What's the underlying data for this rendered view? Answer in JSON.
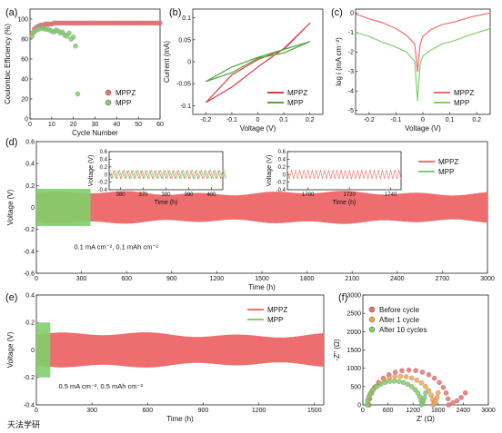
{
  "watermark": "天法学研",
  "colors": {
    "MPPZ": "#ee6d6f",
    "MPP": "#7fcf6a",
    "MPPZ_dark": "#d83b3f",
    "MPP_dark": "#4fa73c",
    "after1": "#f4a54a"
  },
  "chart_data": [
    {
      "id": "a",
      "label": "(a)",
      "type": "scatter",
      "xlabel": "Cycle Number",
      "ylabel": "Coulombic Efficiency (%)",
      "xlim": [
        0,
        60
      ],
      "ylim": [
        0,
        110
      ],
      "xticks": [
        0,
        10,
        20,
        30,
        40,
        50,
        60
      ],
      "yticks": [
        0,
        20,
        40,
        60,
        80,
        100
      ],
      "legend": "right",
      "series": [
        {
          "name": "MPPZ",
          "color": "MPPZ",
          "x": [
            1,
            2,
            3,
            4,
            5,
            6,
            7,
            8,
            9,
            10,
            11,
            12,
            13,
            14,
            15,
            16,
            17,
            18,
            19,
            20,
            21,
            22,
            23,
            24,
            25,
            26,
            27,
            28,
            29,
            30,
            31,
            32,
            33,
            34,
            35,
            36,
            37,
            38,
            39,
            40,
            41,
            42,
            43,
            44,
            45,
            46,
            47,
            48,
            49,
            50,
            51,
            52,
            53,
            54,
            55,
            56,
            57,
            58,
            59,
            60
          ],
          "y": [
            86,
            90,
            92,
            93,
            94,
            94,
            95,
            95,
            95,
            95,
            96,
            96,
            96,
            96,
            96,
            96,
            96,
            96,
            96,
            96,
            96,
            96,
            96,
            96,
            96,
            96,
            96,
            96,
            96,
            96,
            96,
            96,
            96,
            96,
            96,
            96,
            96,
            96,
            96,
            96,
            96,
            96,
            96,
            96,
            96,
            96,
            96,
            96,
            96,
            96,
            96,
            96,
            96,
            96,
            96,
            96,
            96,
            96,
            96,
            96
          ]
        },
        {
          "name": "MPP",
          "color": "MPP",
          "x": [
            1,
            2,
            3,
            4,
            5,
            6,
            7,
            8,
            9,
            10,
            11,
            12,
            13,
            14,
            15,
            16,
            17,
            18,
            19,
            20,
            21,
            22
          ],
          "y": [
            83,
            87,
            89,
            90,
            91,
            91,
            90,
            90,
            89,
            88,
            87,
            89,
            88,
            86,
            87,
            84,
            83,
            86,
            80,
            82,
            73,
            25
          ]
        }
      ]
    },
    {
      "id": "b",
      "label": "(b)",
      "type": "line",
      "xlabel": "Voltage (V)",
      "ylabel": "Current (mA)",
      "xlim": [
        -0.25,
        0.25
      ],
      "ylim": [
        -0.12,
        0.12
      ],
      "xticks": [
        -0.2,
        -0.1,
        0.0,
        0.1,
        0.2
      ],
      "yticks": [
        -0.1,
        -0.05,
        0.0,
        0.05,
        0.1
      ],
      "legend": "bottom-right",
      "series": [
        {
          "name": "MPPZ",
          "color": "MPPZ_dark",
          "x": [
            -0.2,
            -0.1,
            0,
            0.1,
            0.2,
            0.1,
            0,
            -0.1,
            -0.2
          ],
          "y": [
            -0.093,
            -0.058,
            -0.012,
            0.03,
            0.088,
            0.028,
            0.005,
            -0.03,
            -0.093
          ]
        },
        {
          "name": "MPP",
          "color": "MPP_dark",
          "x": [
            -0.2,
            -0.1,
            0,
            0.1,
            0.2,
            0.1,
            0,
            -0.1,
            -0.2
          ],
          "y": [
            -0.045,
            -0.012,
            0.01,
            0.028,
            0.046,
            0.02,
            0.008,
            -0.025,
            -0.045
          ]
        }
      ]
    },
    {
      "id": "c",
      "label": "(c)",
      "type": "line",
      "xlabel": "Voltage (V)",
      "ylabel": "log i (mA cm⁻²)",
      "xlim": [
        -0.25,
        0.25
      ],
      "ylim": [
        -5.2,
        0.2
      ],
      "xticks": [
        -0.2,
        -0.1,
        0.0,
        0.1,
        0.2
      ],
      "yticks": [
        0,
        -1,
        -2,
        -3,
        -4,
        -5
      ],
      "legend": "bottom-right",
      "series": [
        {
          "name": "MPPZ",
          "color": "MPPZ",
          "x": [
            -0.25,
            -0.2,
            -0.15,
            -0.1,
            -0.06,
            -0.03,
            -0.02,
            -0.01,
            0,
            0.03,
            0.07,
            0.12,
            0.18,
            0.25
          ],
          "y": [
            -0.05,
            -0.3,
            -0.5,
            -0.8,
            -1.15,
            -1.6,
            -3.0,
            -1.6,
            -1.2,
            -0.85,
            -0.6,
            -0.45,
            -0.2,
            0.0
          ]
        },
        {
          "name": "MPP",
          "color": "MPP",
          "x": [
            -0.25,
            -0.2,
            -0.15,
            -0.1,
            -0.06,
            -0.03,
            -0.02,
            -0.01,
            0,
            0.03,
            0.07,
            0.12,
            0.18,
            0.25
          ],
          "y": [
            -1.0,
            -1.2,
            -1.5,
            -1.75,
            -2.0,
            -2.5,
            -4.5,
            -2.6,
            -2.2,
            -1.9,
            -1.6,
            -1.4,
            -1.1,
            -0.8
          ]
        }
      ]
    },
    {
      "id": "d",
      "label": "(d)",
      "type": "line",
      "xlabel": "Time (h)",
      "ylabel": "Voltage (V)",
      "xlim": [
        0,
        3000
      ],
      "ylim": [
        -0.6,
        0.6
      ],
      "xticks": [
        0,
        300,
        600,
        900,
        1200,
        1500,
        1800,
        2100,
        2400,
        2700,
        3000
      ],
      "yticks": [
        -0.6,
        -0.4,
        -0.2,
        0.0,
        0.2,
        0.4,
        0.6
      ],
      "legend": "top-right",
      "note": "0.1 mA cm⁻², 0.1 mAh cm⁻²",
      "series": [
        {
          "name": "MPPZ",
          "color": "MPPZ",
          "amplitude": 0.13,
          "start": 0,
          "end": 3000
        },
        {
          "name": "MPP",
          "color": "MPP",
          "amplitude": 0.17,
          "start": 0,
          "end": 360
        }
      ],
      "insets": [
        {
          "xlabel": "Time (h)",
          "ylabel": "Voltage (V)",
          "xlim": [
            355,
            405
          ],
          "ylim": [
            -0.4,
            0.6
          ],
          "xticks": [
            360,
            370,
            380,
            390,
            400
          ],
          "yticks": [
            -0.4,
            -0.2,
            0.0,
            0.2,
            0.4,
            0.6
          ],
          "period_h": 2,
          "series": [
            "MPPZ",
            "MPP"
          ],
          "amplitudes": [
            0.1,
            0.12
          ]
        },
        {
          "xlabel": "Time (h)",
          "ylabel": "Voltage (V)",
          "xlim": [
            1690,
            1745
          ],
          "ylim": [
            -0.4,
            0.6
          ],
          "xticks": [
            1700,
            1720,
            1740
          ],
          "yticks": [
            -0.4,
            -0.2,
            0.0,
            0.2,
            0.4,
            0.6
          ],
          "period_h": 2,
          "series": [
            "MPPZ"
          ],
          "amplitudes": [
            0.12
          ]
        }
      ]
    },
    {
      "id": "e",
      "label": "(e)",
      "type": "line",
      "xlabel": "Time (h)",
      "ylabel": "Voltage (V)",
      "xlim": [
        0,
        1550
      ],
      "ylim": [
        -0.4,
        0.4
      ],
      "xticks": [
        0,
        300,
        600,
        900,
        1200,
        1500
      ],
      "yticks": [
        -0.4,
        -0.2,
        0.0,
        0.2,
        0.4
      ],
      "legend": "top-right",
      "note": "0.5 mA cm⁻², 0.5 mAh cm⁻²",
      "series": [
        {
          "name": "MPPZ",
          "color": "MPPZ",
          "amplitude": 0.11,
          "start": 0,
          "end": 1550
        },
        {
          "name": "MPP",
          "color": "MPP",
          "amplitude": 0.2,
          "start": 0,
          "end": 75
        }
      ]
    },
    {
      "id": "f",
      "label": "(f)",
      "type": "scatter",
      "xlabel": "Z' (Ω)",
      "ylabel": "-Z'' (Ω)",
      "xlim": [
        0,
        3000
      ],
      "ylim": [
        0,
        3000
      ],
      "xticks": [
        0,
        600,
        1200,
        1800,
        2400,
        3000
      ],
      "yticks": [
        0,
        500,
        1000,
        1500,
        2000,
        2500,
        3000
      ],
      "legend": "top-left",
      "series": [
        {
          "name": "Before cycle",
          "color": "MPPZ",
          "r": 950,
          "x0": 150,
          "tail_end": 2450
        },
        {
          "name": "After 1 cycle",
          "color": "after1",
          "r": 780,
          "x0": 120,
          "tail_end": 1800
        },
        {
          "name": "After 10 cycles",
          "color": "MPP",
          "r": 650,
          "x0": 100,
          "tail_end": 1500
        }
      ]
    }
  ]
}
